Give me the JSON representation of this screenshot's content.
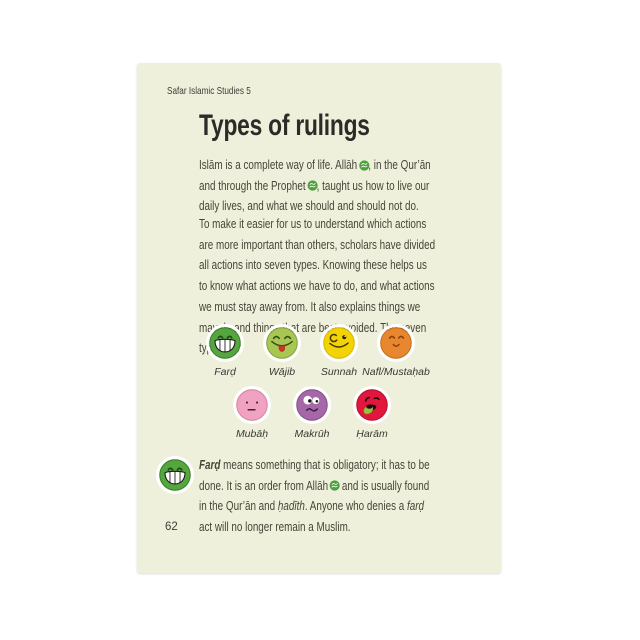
{
  "page": {
    "series_header": "Safar Islamic Studies 5",
    "title": "Types of rulings",
    "page_number": "62",
    "background_color": "#eef0dc"
  },
  "honorific_badge": {
    "color": "#4ba23a"
  },
  "paragraphs": {
    "intro": [
      {
        "text": "Islām is a complete way of life. Allāh "
      },
      {
        "badge": "allah"
      },
      {
        "text": ", in the Qur’ān and through the Prophet "
      },
      {
        "badge": "prophet"
      },
      {
        "text": ", taught us how to live our daily lives, and what we should and should not do."
      }
    ],
    "explain": [
      {
        "text": "To make it easier for us to understand which actions are more important than others, scholars have divided all actions into seven types. Knowing these helps us to know what actions we have to do, and what actions we must stay away from. It also explains things we may do and things that are best avoided. The seven types are:"
      }
    ],
    "fard_def": [
      {
        "text": "Farḍ",
        "style": "bold-italic"
      },
      {
        "text": " means something that is obligatory; it has to be done. It is an order from Allāh "
      },
      {
        "badge": "allah"
      },
      {
        "text": " and is usually found in the Qur’ān and "
      },
      {
        "text": "ḥadīth",
        "style": "italic"
      },
      {
        "text": ". Anyone who denies a "
      },
      {
        "text": "farḍ",
        "style": "italic"
      },
      {
        "text": " act will no longer remain a Muslim."
      }
    ]
  },
  "rulings": {
    "row1": [
      {
        "label": "Farḍ",
        "face": "grin",
        "color": "#56a63f"
      },
      {
        "label": "Wājib",
        "face": "tongue-out",
        "color": "#a9c653"
      },
      {
        "label": "Sunnah",
        "face": "wink",
        "color": "#f2d405"
      },
      {
        "label": "Nafl/Mustaḥab",
        "face": "content",
        "color": "#e8872e"
      }
    ],
    "row2": [
      {
        "label": "Mubāḥ",
        "face": "neutral",
        "color": "#f1a2c0"
      },
      {
        "label": "Makrūh",
        "face": "worried",
        "color": "#a667a9"
      },
      {
        "label": "Ḥarām",
        "face": "sick",
        "color": "#e2173d"
      }
    ]
  },
  "side_icon": {
    "face": "grin",
    "color": "#56a63f"
  }
}
